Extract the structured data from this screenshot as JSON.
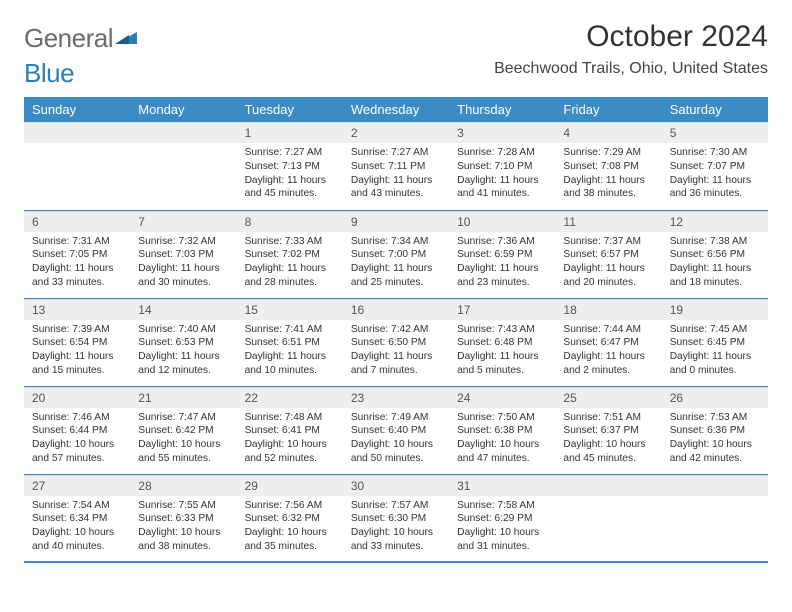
{
  "logo": {
    "text_gray": "General",
    "text_blue": "Blue"
  },
  "title": "October 2024",
  "location": "Beechwood Trails, Ohio, United States",
  "colors": {
    "header_bg": "#3b8bc4",
    "header_text": "#ffffff",
    "daynum_bg": "#eceef0",
    "border": "#3b8bc4",
    "body_text": "#333333",
    "logo_gray": "#6b6b6b",
    "logo_blue": "#2a7db8"
  },
  "weekdays": [
    "Sunday",
    "Monday",
    "Tuesday",
    "Wednesday",
    "Thursday",
    "Friday",
    "Saturday"
  ],
  "grid": [
    [
      null,
      null,
      {
        "n": "1",
        "sr": "Sunrise: 7:27 AM",
        "ss": "Sunset: 7:13 PM",
        "dl": "Daylight: 11 hours and 45 minutes."
      },
      {
        "n": "2",
        "sr": "Sunrise: 7:27 AM",
        "ss": "Sunset: 7:11 PM",
        "dl": "Daylight: 11 hours and 43 minutes."
      },
      {
        "n": "3",
        "sr": "Sunrise: 7:28 AM",
        "ss": "Sunset: 7:10 PM",
        "dl": "Daylight: 11 hours and 41 minutes."
      },
      {
        "n": "4",
        "sr": "Sunrise: 7:29 AM",
        "ss": "Sunset: 7:08 PM",
        "dl": "Daylight: 11 hours and 38 minutes."
      },
      {
        "n": "5",
        "sr": "Sunrise: 7:30 AM",
        "ss": "Sunset: 7:07 PM",
        "dl": "Daylight: 11 hours and 36 minutes."
      }
    ],
    [
      {
        "n": "6",
        "sr": "Sunrise: 7:31 AM",
        "ss": "Sunset: 7:05 PM",
        "dl": "Daylight: 11 hours and 33 minutes."
      },
      {
        "n": "7",
        "sr": "Sunrise: 7:32 AM",
        "ss": "Sunset: 7:03 PM",
        "dl": "Daylight: 11 hours and 30 minutes."
      },
      {
        "n": "8",
        "sr": "Sunrise: 7:33 AM",
        "ss": "Sunset: 7:02 PM",
        "dl": "Daylight: 11 hours and 28 minutes."
      },
      {
        "n": "9",
        "sr": "Sunrise: 7:34 AM",
        "ss": "Sunset: 7:00 PM",
        "dl": "Daylight: 11 hours and 25 minutes."
      },
      {
        "n": "10",
        "sr": "Sunrise: 7:36 AM",
        "ss": "Sunset: 6:59 PM",
        "dl": "Daylight: 11 hours and 23 minutes."
      },
      {
        "n": "11",
        "sr": "Sunrise: 7:37 AM",
        "ss": "Sunset: 6:57 PM",
        "dl": "Daylight: 11 hours and 20 minutes."
      },
      {
        "n": "12",
        "sr": "Sunrise: 7:38 AM",
        "ss": "Sunset: 6:56 PM",
        "dl": "Daylight: 11 hours and 18 minutes."
      }
    ],
    [
      {
        "n": "13",
        "sr": "Sunrise: 7:39 AM",
        "ss": "Sunset: 6:54 PM",
        "dl": "Daylight: 11 hours and 15 minutes."
      },
      {
        "n": "14",
        "sr": "Sunrise: 7:40 AM",
        "ss": "Sunset: 6:53 PM",
        "dl": "Daylight: 11 hours and 12 minutes."
      },
      {
        "n": "15",
        "sr": "Sunrise: 7:41 AM",
        "ss": "Sunset: 6:51 PM",
        "dl": "Daylight: 11 hours and 10 minutes."
      },
      {
        "n": "16",
        "sr": "Sunrise: 7:42 AM",
        "ss": "Sunset: 6:50 PM",
        "dl": "Daylight: 11 hours and 7 minutes."
      },
      {
        "n": "17",
        "sr": "Sunrise: 7:43 AM",
        "ss": "Sunset: 6:48 PM",
        "dl": "Daylight: 11 hours and 5 minutes."
      },
      {
        "n": "18",
        "sr": "Sunrise: 7:44 AM",
        "ss": "Sunset: 6:47 PM",
        "dl": "Daylight: 11 hours and 2 minutes."
      },
      {
        "n": "19",
        "sr": "Sunrise: 7:45 AM",
        "ss": "Sunset: 6:45 PM",
        "dl": "Daylight: 11 hours and 0 minutes."
      }
    ],
    [
      {
        "n": "20",
        "sr": "Sunrise: 7:46 AM",
        "ss": "Sunset: 6:44 PM",
        "dl": "Daylight: 10 hours and 57 minutes."
      },
      {
        "n": "21",
        "sr": "Sunrise: 7:47 AM",
        "ss": "Sunset: 6:42 PM",
        "dl": "Daylight: 10 hours and 55 minutes."
      },
      {
        "n": "22",
        "sr": "Sunrise: 7:48 AM",
        "ss": "Sunset: 6:41 PM",
        "dl": "Daylight: 10 hours and 52 minutes."
      },
      {
        "n": "23",
        "sr": "Sunrise: 7:49 AM",
        "ss": "Sunset: 6:40 PM",
        "dl": "Daylight: 10 hours and 50 minutes."
      },
      {
        "n": "24",
        "sr": "Sunrise: 7:50 AM",
        "ss": "Sunset: 6:38 PM",
        "dl": "Daylight: 10 hours and 47 minutes."
      },
      {
        "n": "25",
        "sr": "Sunrise: 7:51 AM",
        "ss": "Sunset: 6:37 PM",
        "dl": "Daylight: 10 hours and 45 minutes."
      },
      {
        "n": "26",
        "sr": "Sunrise: 7:53 AM",
        "ss": "Sunset: 6:36 PM",
        "dl": "Daylight: 10 hours and 42 minutes."
      }
    ],
    [
      {
        "n": "27",
        "sr": "Sunrise: 7:54 AM",
        "ss": "Sunset: 6:34 PM",
        "dl": "Daylight: 10 hours and 40 minutes."
      },
      {
        "n": "28",
        "sr": "Sunrise: 7:55 AM",
        "ss": "Sunset: 6:33 PM",
        "dl": "Daylight: 10 hours and 38 minutes."
      },
      {
        "n": "29",
        "sr": "Sunrise: 7:56 AM",
        "ss": "Sunset: 6:32 PM",
        "dl": "Daylight: 10 hours and 35 minutes."
      },
      {
        "n": "30",
        "sr": "Sunrise: 7:57 AM",
        "ss": "Sunset: 6:30 PM",
        "dl": "Daylight: 10 hours and 33 minutes."
      },
      {
        "n": "31",
        "sr": "Sunrise: 7:58 AM",
        "ss": "Sunset: 6:29 PM",
        "dl": "Daylight: 10 hours and 31 minutes."
      },
      null,
      null
    ]
  ]
}
